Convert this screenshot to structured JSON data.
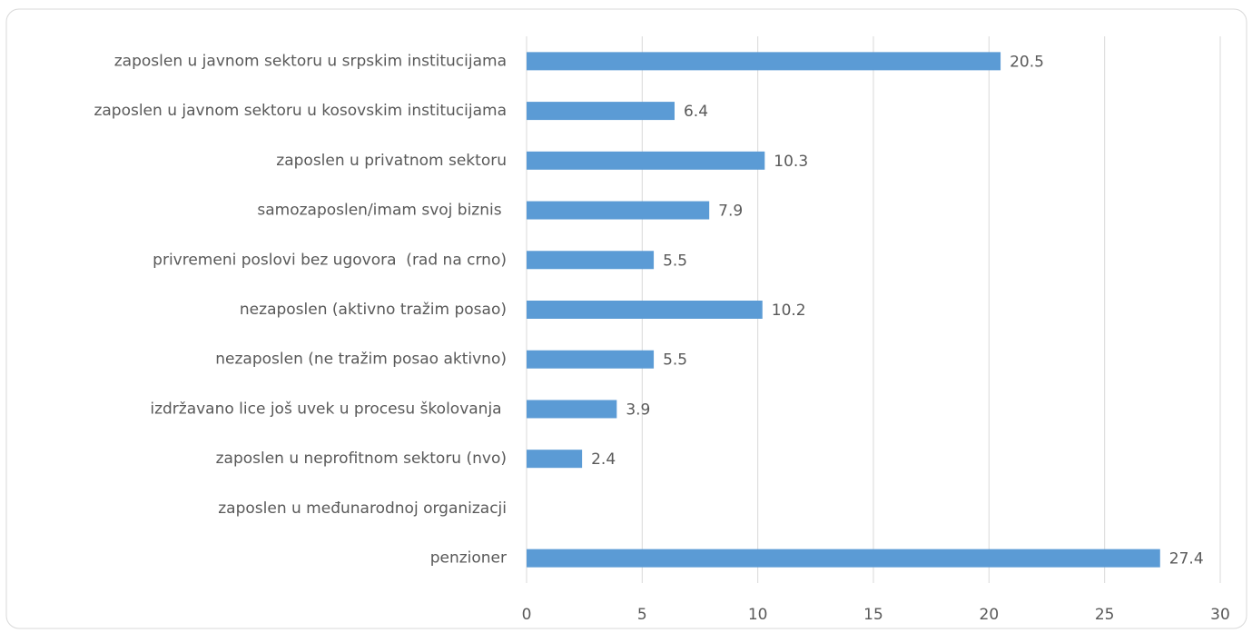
{
  "chart_data": {
    "type": "hbar",
    "categories": [
      "zaposlen u javnom sektoru u srpskim institucijama",
      "zaposlen u javnom sektoru u kosovskim institucijama",
      "zaposlen u privatnom sektoru",
      "samozaposlen/imam svoj biznis ",
      "privremeni poslovi bez ugovora  (rad na crno)",
      "nezaposlen (aktivno tražim posao)",
      "nezaposlen (ne tražim posao aktivno)",
      "izdržavano lice još uvek u procesu školovanja ",
      "zaposlen u neprofitnom sektoru (nvo)",
      "zaposlen u međunarodnoj organizacji",
      "penzioner"
    ],
    "values": [
      20.5,
      6.4,
      10.3,
      7.9,
      5.5,
      10.2,
      5.5,
      3.9,
      2.4,
      null,
      27.4
    ],
    "color": "#5b9bd5",
    "xlim": [
      0,
      30
    ],
    "xticks": [
      0,
      5,
      10,
      15,
      20,
      25,
      30
    ],
    "grid": true
  }
}
